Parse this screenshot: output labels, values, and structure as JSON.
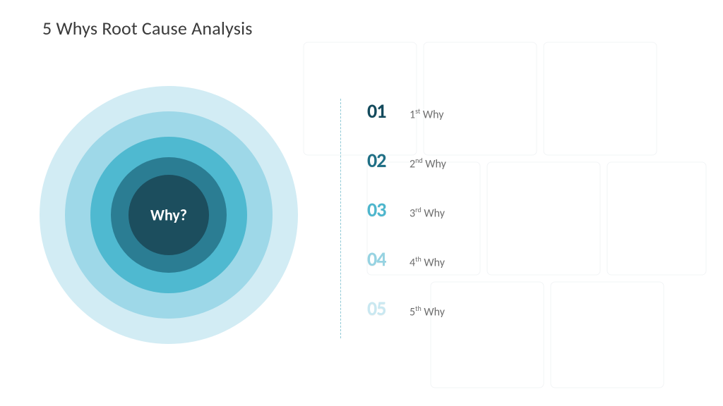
{
  "title": "5 Whys Root Cause Analysis",
  "background_color": "#ffffff",
  "circles": {
    "center_label": "Why?",
    "center_label_color": "#ffffff",
    "center_label_fontsize": 22,
    "rings": [
      {
        "diameter": 366,
        "color": "#d2ecf4"
      },
      {
        "diameter": 294,
        "color": "#9ed8e8"
      },
      {
        "diameter": 222,
        "color": "#4fb9d0"
      },
      {
        "diameter": 164,
        "color": "#2b7d93"
      },
      {
        "diameter": 114,
        "color": "#1c4e5e"
      }
    ]
  },
  "divider_color": "#8fc9d6",
  "items": [
    {
      "num": "01",
      "num_color": "#134a5c",
      "ordinal": "1",
      "suffix": "st",
      "word": "Why"
    },
    {
      "num": "02",
      "num_color": "#1f6f85",
      "ordinal": "2",
      "suffix": "nd",
      "word": "Why"
    },
    {
      "num": "03",
      "num_color": "#4db6cd",
      "ordinal": "3",
      "suffix": "rd",
      "word": "Why"
    },
    {
      "num": "04",
      "num_color": "#96d3e2",
      "ordinal": "4",
      "suffix": "th",
      "word": "Why"
    },
    {
      "num": "05",
      "num_color": "#c9e8f1",
      "ordinal": "5",
      "suffix": "th",
      "word": "Why"
    }
  ],
  "label_text_color": "#6d6d6d",
  "num_fontsize": 28,
  "label_fontsize": 16
}
